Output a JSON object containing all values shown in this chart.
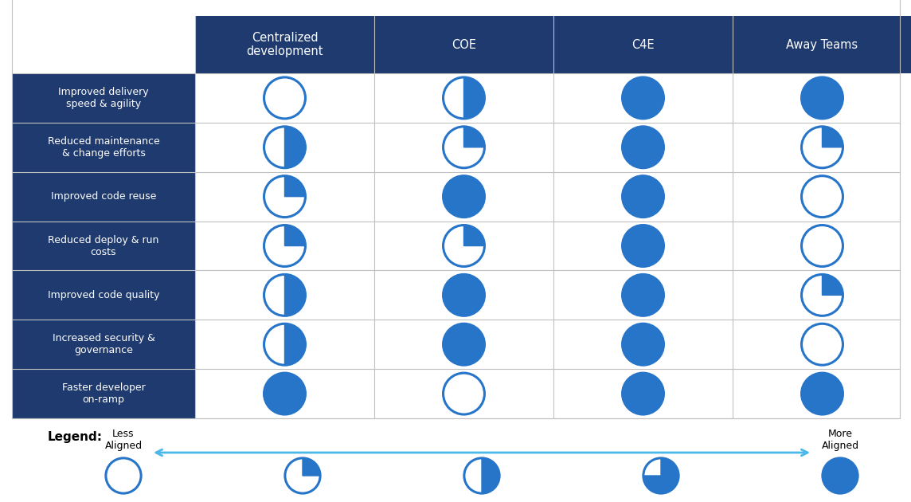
{
  "col_headers": [
    "Centralized\ndevelopment",
    "COE",
    "C4E",
    "Away Teams"
  ],
  "row_labels": [
    "Improved delivery\nspeed & agility",
    "Reduced maintenance\n& change efforts",
    "Improved code reuse",
    "Reduced deploy & run\ncosts",
    "Improved code quality",
    "Increased security &\ngovernance",
    "Faster developer\non-ramp"
  ],
  "fill_values": [
    [
      0,
      0.5,
      1.0,
      1.0
    ],
    [
      0.5,
      0.25,
      1.0,
      0.25
    ],
    [
      0.25,
      1.0,
      1.0,
      0.0
    ],
    [
      0.25,
      0.25,
      1.0,
      0.0
    ],
    [
      0.5,
      1.0,
      1.0,
      0.25
    ],
    [
      0.5,
      1.0,
      1.0,
      0.0
    ],
    [
      1.0,
      0.0,
      1.0,
      1.0
    ]
  ],
  "header_bg": "#1e3a6e",
  "header_text": "#ffffff",
  "row_bg_dark": "#1e3a6e",
  "row_text_white": "#ffffff",
  "circle_color": "#2775c9",
  "grid_color": "#c0c0c0",
  "arrow_color": "#4ab8e8",
  "fig_bg": "#ffffff",
  "legend_fills": [
    0.0,
    0.25,
    0.5,
    0.75,
    1.0
  ]
}
